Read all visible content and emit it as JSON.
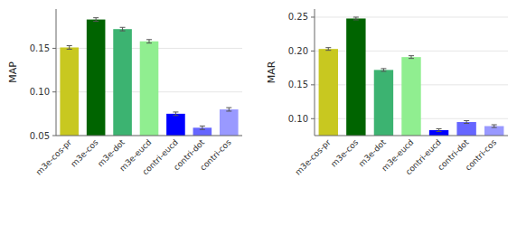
{
  "chart_data": [
    {
      "type": "bar",
      "categories": [
        "m3e-cos-pr",
        "m3e-cos",
        "m3e-dot",
        "m3e-eucd",
        "contri-eucd",
        "contri-dot",
        "contri-cos"
      ],
      "values": [
        0.151,
        0.183,
        0.172,
        0.158,
        0.075,
        0.059,
        0.08
      ],
      "errors": [
        0.002,
        0.002,
        0.002,
        0.002,
        0.002,
        0.002,
        0.002
      ],
      "colors": [
        "#c8c820",
        "#006400",
        "#3cb371",
        "#90ee90",
        "#0000ff",
        "#6666ff",
        "#9999ff"
      ],
      "ylabel": "MAP",
      "ylim": [
        0.05,
        0.195
      ],
      "yticks": [
        0.05,
        {
          "value": 0.1,
          "label": "0.10"
        },
        0.15
      ]
    },
    {
      "type": "bar",
      "categories": [
        "m3e-cos-pr",
        "m3e-cos",
        "m3e-dot",
        "m3e-eucd",
        "contri-eucd",
        "contri-dot",
        "contri-cos"
      ],
      "values": [
        0.203,
        0.248,
        0.172,
        0.191,
        0.083,
        0.095,
        0.089
      ],
      "errors": [
        0.002,
        0.002,
        0.002,
        0.002,
        0.002,
        0.002,
        0.002
      ],
      "colors": [
        "#c8c820",
        "#006400",
        "#3cb371",
        "#90ee90",
        "#0000ff",
        "#6666ff",
        "#9999ff"
      ],
      "ylabel": "MAR",
      "ylim": [
        0.075,
        0.262
      ],
      "yticks": [
        {
          "value": 0.1,
          "label": "0.10"
        },
        0.15,
        {
          "value": 0.2,
          "label": "0.20"
        },
        0.25
      ]
    }
  ]
}
